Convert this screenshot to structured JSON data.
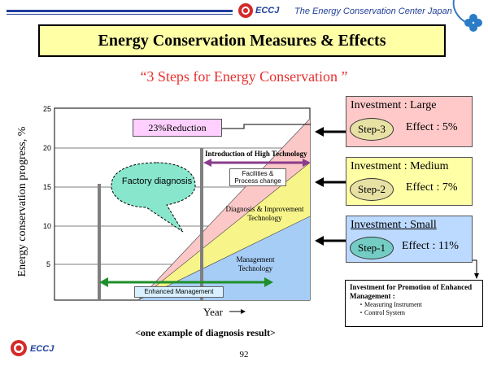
{
  "header": {
    "org_logo_text": "ECCJ",
    "org_name": "The Energy Conservation Center Japan"
  },
  "title": "Energy Conservation Measures & Effects",
  "subtitle": "“3 Steps for Energy Conservation ”",
  "chart": {
    "ylabel": "Energy conservation progress, %",
    "xlabel": "Year",
    "yticks": [
      "25",
      "20",
      "15",
      "10",
      "5"
    ],
    "reduction_label": "23%Reduction",
    "factory_callout": "Factory diagnosis",
    "high_tech_label": "Introduction of High Technology",
    "facilities_label": "Facilities & Process change",
    "diagnosis_label": "Diagnosis & Improvement Technology",
    "management_label": "Management Technology",
    "enhanced_label": "Enhanced Management",
    "colors": {
      "management_area": "#a6cdf6",
      "diagnosis_area": "#f7f58a",
      "high_tech_area": "#fcc7c7",
      "arrow_green": "#1f8f2a",
      "arrow_purple": "#8a3c8a"
    }
  },
  "steps": [
    {
      "investment": "Investment : Large",
      "step": "Step-3",
      "effect": "Effect : 5%",
      "bg": "#ffc9c9",
      "oval": "#e7e1a4"
    },
    {
      "investment": "Investment : Medium",
      "step": "Step-2",
      "effect": "Effect : 7%",
      "bg": "#ffffa6",
      "oval": "#e7e1a4"
    },
    {
      "investment": "Investment : Small",
      "step": "Step-1",
      "effect": "Effect : 11%",
      "bg": "#bcd9ff",
      "oval": "#74cdc4"
    }
  ],
  "promotion": {
    "title": "Investment for Promotion of Enhanced Management :",
    "items": [
      "・Measuring Instrument",
      "・Control System"
    ]
  },
  "caption": "<one example of diagnosis result>",
  "footer": {
    "logo_text": "ECCJ",
    "page_number": "92"
  }
}
